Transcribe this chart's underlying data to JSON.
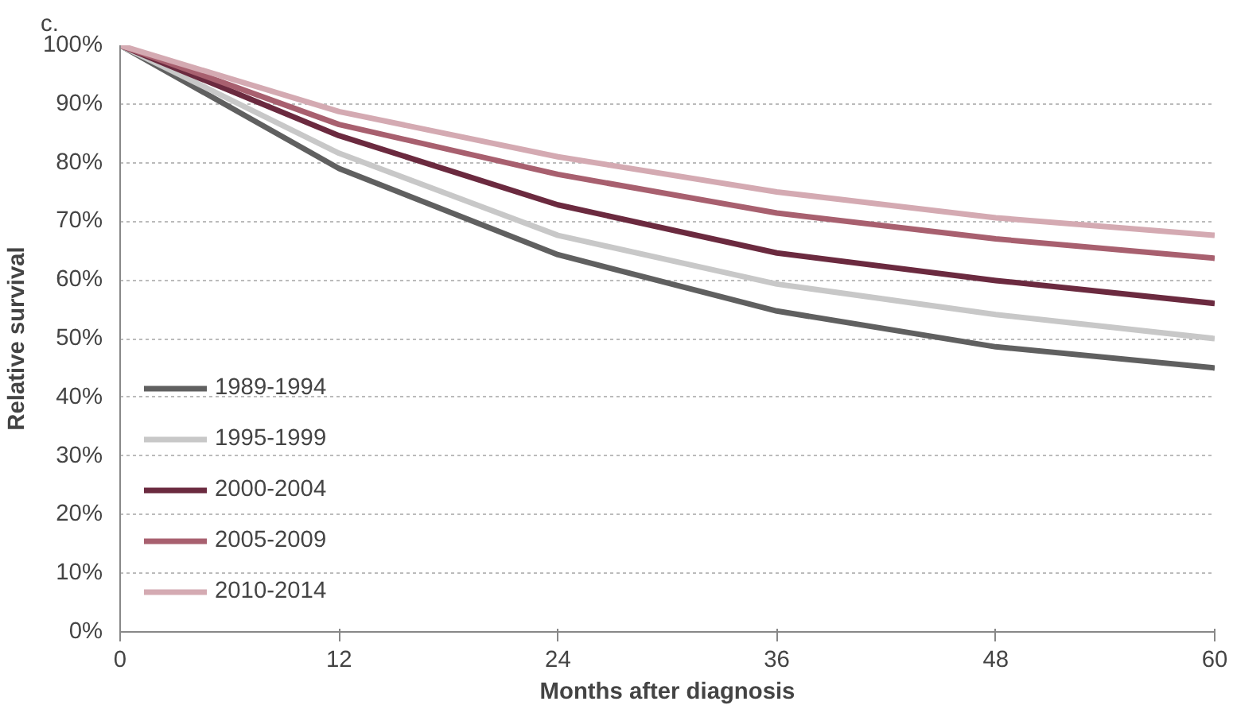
{
  "chart_data": {
    "type": "line",
    "xlabel": "Months after diagnosis",
    "ylabel": "Relative survival",
    "annotations": [
      "c."
    ],
    "x": [
      0,
      12,
      24,
      36,
      48,
      60
    ],
    "series": [
      {
        "name": "1989-1994",
        "color": "#606060",
        "values": [
          100,
          79,
          64.3,
          54.7,
          48.6,
          45
        ]
      },
      {
        "name": "1995-1999",
        "color": "#c8c8c8",
        "values": [
          100,
          81.6,
          67.6,
          59.3,
          54.1,
          50
        ]
      },
      {
        "name": "2000-2004",
        "color": "#6b2a3f",
        "values": [
          100,
          84.6,
          72.8,
          64.6,
          59.9,
          56
        ]
      },
      {
        "name": "2005-2009",
        "color": "#a8606f",
        "values": [
          100,
          86.5,
          78,
          71.4,
          67,
          63.7
        ]
      },
      {
        "name": "2010-2014",
        "color": "#d4aab2",
        "values": [
          100,
          88.7,
          81,
          75,
          70.6,
          67.6
        ]
      }
    ],
    "xlim": [
      0,
      60
    ],
    "xticks": [
      0,
      12,
      24,
      36,
      48,
      60
    ],
    "ylim": [
      0,
      100
    ],
    "yticks": [
      {
        "value": 0,
        "label": "0%"
      },
      {
        "value": 10,
        "label": "10%"
      },
      {
        "value": 20,
        "label": "20%"
      },
      {
        "value": 30,
        "label": "30%"
      },
      {
        "value": 40,
        "label": "40%"
      },
      {
        "value": 50,
        "label": "50%"
      },
      {
        "value": 60,
        "label": "60%"
      },
      {
        "value": 70,
        "label": "70%"
      },
      {
        "value": 80,
        "label": "80%"
      },
      {
        "value": 90,
        "label": "90%"
      },
      {
        "value": 100,
        "label": "100%"
      }
    ],
    "grid": "y",
    "legend": "bottom left",
    "marker": "none",
    "line_style": "solid"
  }
}
